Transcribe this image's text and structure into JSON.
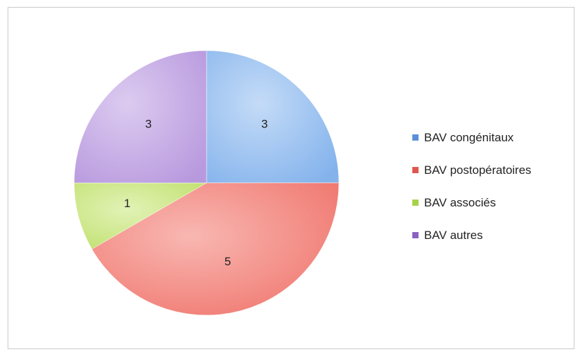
{
  "chart_data": {
    "type": "pie",
    "categories": [
      "BAV congénitaux",
      "BAV postopératoires",
      "BAV associés",
      "BAV autres"
    ],
    "values": [
      3,
      5,
      1,
      3
    ],
    "colors": [
      "#9cc3f0",
      "#f48f88",
      "#cde889",
      "#c8aee6"
    ],
    "legend_colors": [
      "#5b8fd6",
      "#e0574f",
      "#a6d24a",
      "#8a62c0"
    ],
    "start_angle_deg": 0,
    "direction": "clockwise",
    "legend_position": "right",
    "title": "",
    "data_labels": [
      "3",
      "5",
      "1",
      "3"
    ]
  }
}
